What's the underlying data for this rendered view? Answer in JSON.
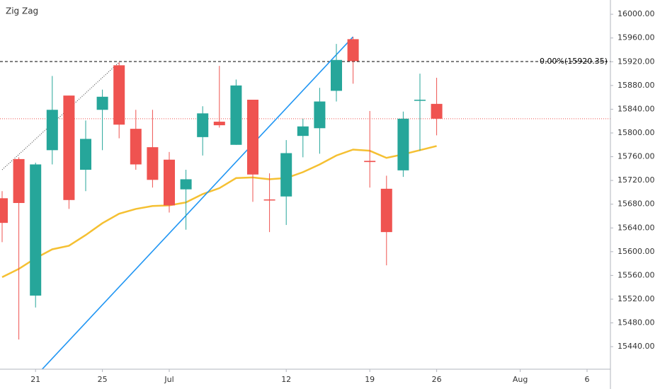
{
  "chart_data": {
    "type": "candlestick",
    "title": "Zig Zag",
    "categories": [
      null,
      null,
      "21",
      null,
      null,
      null,
      "25",
      null,
      null,
      null,
      "Jul",
      null,
      null,
      null,
      null,
      null,
      null,
      "12",
      null,
      null,
      null,
      null,
      "19",
      null,
      null,
      null,
      "26",
      null,
      null,
      null,
      null,
      "Aug",
      null,
      null,
      null,
      "6",
      null
    ],
    "open": [
      15690,
      15756,
      15526,
      15771,
      15863,
      15738,
      15839,
      15914,
      15807,
      15776,
      15755,
      15705,
      15793,
      15819,
      15780,
      15856,
      15688,
      15693,
      15795,
      15808,
      15871,
      15958,
      15753,
      15706,
      15737,
      15855,
      15849,
      null,
      null,
      null,
      null,
      null,
      null,
      null,
      null,
      null,
      null
    ],
    "high": [
      15702,
      15759,
      15750,
      15896,
      15863,
      15821,
      15873,
      15919,
      15839,
      15839,
      15768,
      15738,
      15845,
      15913,
      15890,
      15856,
      15732,
      15788,
      15824,
      15876,
      15950,
      15962,
      15837,
      15728,
      15836,
      15900,
      15893,
      null,
      null,
      null,
      null,
      null,
      null,
      null,
      null,
      null,
      null
    ],
    "low": [
      15616,
      15452,
      15506,
      15747,
      15672,
      15702,
      15771,
      15791,
      15738,
      15708,
      15666,
      15637,
      15762,
      15809,
      15780,
      15684,
      15633,
      15645,
      15759,
      15765,
      15853,
      15883,
      15708,
      15577,
      15726,
      15770,
      15796,
      null,
      null,
      null,
      null,
      null,
      null,
      null,
      null,
      null,
      null
    ],
    "close": [
      15648.5,
      15682,
      15747,
      15839,
      15687,
      15790,
      15861,
      15814,
      15747,
      15721,
      15678,
      15722,
      15833,
      15813,
      15880,
      15730,
      15687,
      15766,
      15811,
      15853,
      15923,
      15921,
      15751,
      15633,
      15824,
      15856,
      15824,
      null,
      null,
      null,
      null,
      null,
      null,
      null,
      null,
      null,
      null
    ],
    "up_color": "#26a69a",
    "down_color": "#ef5350",
    "series": [
      {
        "color": "#f5c032",
        "values": [
          15557,
          15571,
          15589,
          15604,
          15610,
          15628,
          15648,
          15664,
          15672,
          15677,
          15678,
          15683,
          15697,
          15707,
          15724,
          15725,
          15722,
          15724,
          15734,
          15747,
          15762,
          15772,
          15770,
          15758,
          15764,
          15771,
          15778,
          null,
          null,
          null,
          null,
          null,
          null,
          null,
          null,
          null,
          null
        ]
      }
    ],
    "lines": [
      {
        "color": "#2196f3",
        "dash": false,
        "x": [
          2,
          21
        ],
        "values": [
          15390,
          15962
        ]
      },
      {
        "color": "#333333",
        "dash": true,
        "x": [
          0,
          7
        ],
        "values": [
          15738,
          15919
        ]
      }
    ],
    "level": {
      "value": 15920.35,
      "label": "0.00%(15920.35)",
      "color": "#000000"
    },
    "last_close_line_color": "#ef5350",
    "ylim": [
      15402,
      16024
    ],
    "yticks": [
      {
        "value": 15440,
        "label": "15440.00"
      },
      {
        "value": 15480,
        "label": "15480.00"
      },
      {
        "value": 15520,
        "label": "15520.00"
      },
      {
        "value": 15560,
        "label": "15560.00"
      },
      {
        "value": 15600,
        "label": "15600.00"
      },
      {
        "value": 15640,
        "label": "15640.00"
      },
      {
        "value": 15680,
        "label": "15680.00"
      },
      {
        "value": 15720,
        "label": "15720.00"
      },
      {
        "value": 15760,
        "label": "15760.00"
      },
      {
        "value": 15800,
        "label": "15800.00"
      },
      {
        "value": 15840,
        "label": "15840.00"
      },
      {
        "value": 15880,
        "label": "15880.00"
      },
      {
        "value": 15920,
        "label": "15920.00"
      },
      {
        "value": 15960,
        "label": "15960.00"
      },
      {
        "value": 16000,
        "label": "16000.00"
      }
    ]
  }
}
